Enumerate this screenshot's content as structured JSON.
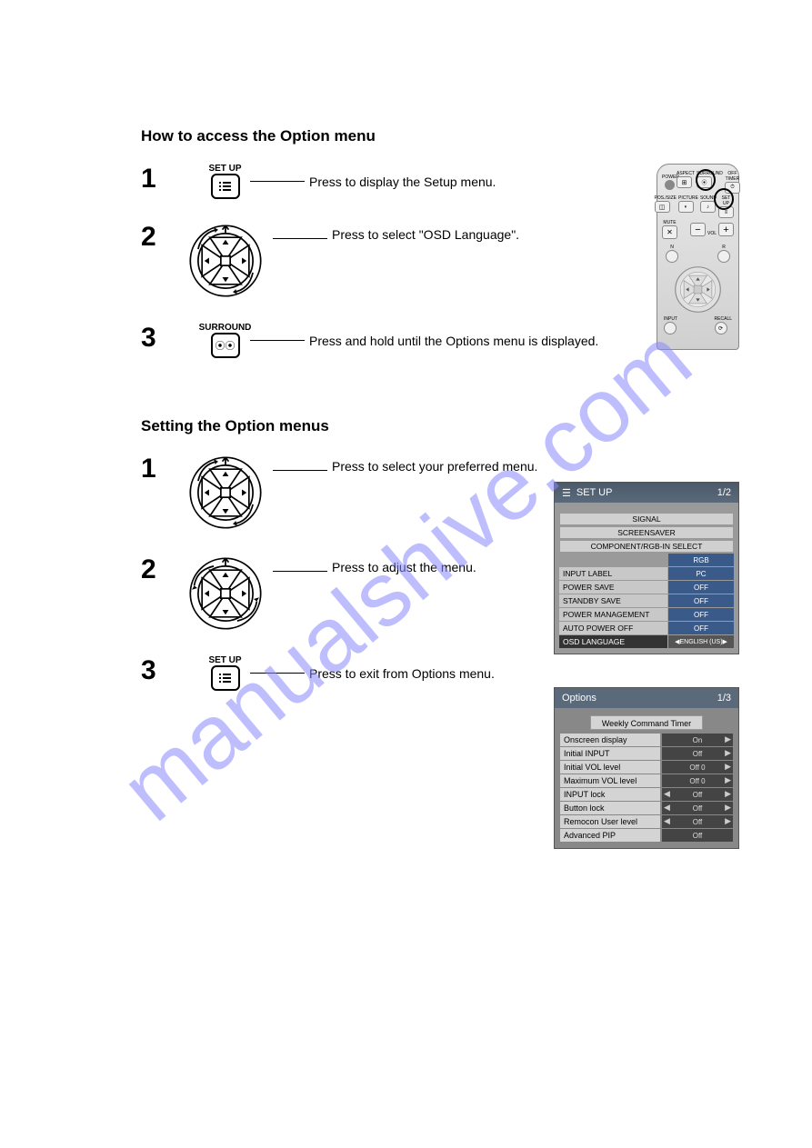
{
  "watermark": "manualshive.com ",
  "section1": {
    "heading": "How to access the Option menu",
    "steps": [
      {
        "num": "1",
        "label": "SET UP",
        "instruction": "Press to display the Setup menu."
      },
      {
        "num": "2",
        "label": "",
        "instruction": "Press to select \"OSD Language\"."
      },
      {
        "num": "3",
        "label": "SURROUND",
        "instruction": "Press and hold until the Options menu is displayed."
      }
    ]
  },
  "section2": {
    "heading": "Setting the Option menus",
    "steps": [
      {
        "num": "1",
        "label": "",
        "instruction": "Press to select your preferred menu."
      },
      {
        "num": "2",
        "label": "",
        "instruction": "Press to adjust the menu."
      },
      {
        "num": "3",
        "label": "SET UP",
        "instruction": "Press to exit from Options menu."
      }
    ]
  },
  "remote": {
    "row1": {
      "power": "POWER",
      "aspect": "ASPECT",
      "surround": "SURROUND",
      "offtimer": "OFF TIMER"
    },
    "row2": {
      "possize": "POS./SIZE",
      "picture": "PICTURE",
      "sound": "SOUND",
      "setup": "SET UP"
    },
    "row3": {
      "mute": "MUTE",
      "vol": "VOL"
    },
    "input": "INPUT",
    "recall": "RECALL",
    "n": "N",
    "r": "R"
  },
  "osd_setup": {
    "title": "SET UP",
    "page": "1/2",
    "header_bg": "#4a5a6a",
    "rows_top": [
      "SIGNAL",
      "SCREENSAVER",
      "COMPONENT/RGB-IN SELECT"
    ],
    "rgb_value": "RGB",
    "rows_kv": [
      {
        "label": "INPUT LABEL",
        "value": "PC",
        "blue": true
      },
      {
        "label": "POWER SAVE",
        "value": "OFF",
        "blue": true
      },
      {
        "label": "STANDBY SAVE",
        "value": "OFF",
        "blue": true
      },
      {
        "label": "POWER MANAGEMENT",
        "value": "OFF",
        "blue": true
      },
      {
        "label": "AUTO POWER OFF",
        "value": "OFF",
        "blue": true
      }
    ],
    "last_row": {
      "label": "OSD LANGUAGE",
      "value": "ENGLISH (US)"
    }
  },
  "osd_options": {
    "title": "Options",
    "page": "1/3",
    "top_row": "Weekly Command Timer",
    "rows": [
      {
        "label": "Onscreen display",
        "value": "On",
        "arrows": "r"
      },
      {
        "label": "Initial INPUT",
        "value": "Off",
        "arrows": "r"
      },
      {
        "label": "Initial VOL level",
        "value": "Off      0",
        "arrows": "r"
      },
      {
        "label": "Maximum VOL level",
        "value": "Off      0",
        "arrows": "r"
      },
      {
        "label": "INPUT lock",
        "value": "Off",
        "arrows": "lr"
      },
      {
        "label": "Button lock",
        "value": "Off",
        "arrows": "lr"
      },
      {
        "label": "Remocon User level",
        "value": "Off",
        "arrows": "lr"
      },
      {
        "label": "Advanced PIP",
        "value": "Off",
        "arrows": ""
      }
    ]
  }
}
